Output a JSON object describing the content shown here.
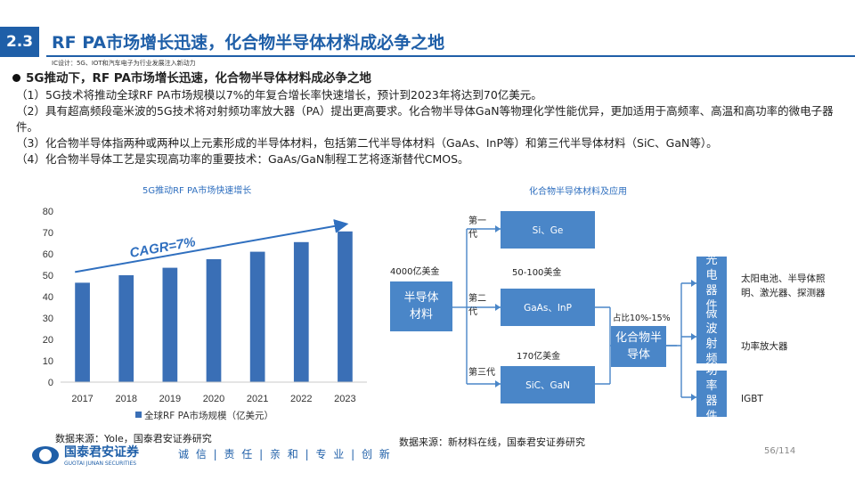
{
  "header": {
    "section_number": "2.3",
    "title": "RF PA市场增长迅速，化合物半导体材料成必争之地",
    "subtitle": "IC设计：5G、IOT和汽车电子为行业发展注入新动力"
  },
  "content": {
    "bullet": "5G推动下，RF PA市场增长迅速，化合物半导体材料成必争之地",
    "paragraphs": [
      "（1）5G技术将推动全球RF PA市场规模以7%的年复合增长率快速增长，预计到2023年将达到70亿美元。",
      "（2）具有超高频段毫米波的5G技术将对射频功率放大器（PA）提出更高要求。化合物半导体GaN等物理化学性能优异，更加适用于高频率、高温和高功率的微电子器件。",
      "（3）化合物半导体指两种或两种以上元素形成的半导体材料，包括第二代半导体材料（GaAs、InP等）和第三代半导体材料（SiC、GaN等）。",
      "（4）化合物半导体工艺是实现高功率的重要技术：GaAs/GaN制程工艺将逐渐替代CMOS。"
    ]
  },
  "chart_data": {
    "type": "bar",
    "title": "5G推动RF PA市场快速增长",
    "categories": [
      "2017",
      "2018",
      "2019",
      "2020",
      "2021",
      "2022",
      "2023"
    ],
    "series": [
      {
        "name": "全球RF PA市场规模（亿美元）",
        "values": [
          46.5,
          50,
          53.5,
          57.5,
          61,
          65.5,
          70.5
        ]
      }
    ],
    "ylim": [
      0,
      80
    ],
    "yticks": [
      0,
      10,
      20,
      30,
      40,
      50,
      60,
      70,
      80
    ],
    "annotation": "CAGR=7%",
    "grid": false,
    "legend": "bottom",
    "color": "#3a6fb6"
  },
  "diagram": {
    "title": "化合物半导体材料及应用",
    "semiconductor": {
      "label": "半导体材料",
      "value": "4000亿美金"
    },
    "generations": [
      {
        "gen": "第一代",
        "materials": "Si、Ge",
        "value": ""
      },
      {
        "gen": "第二代",
        "materials": "GaAs、InP",
        "value": "50-100美金"
      },
      {
        "gen": "第三代",
        "materials": "SiC、GaN",
        "value": "170亿美金"
      }
    ],
    "compound": {
      "label": "化合物半导体",
      "share": "占比10%-15%"
    },
    "applications": [
      {
        "device": "光电器件",
        "uses": "太阳电池、半导体照明、激光器、探测器"
      },
      {
        "device": "微波射频",
        "uses": "功率放大器"
      },
      {
        "device": "功率器件",
        "uses": "IGBT"
      }
    ],
    "colors": {
      "box": "#4a86c8",
      "line": "#4a86c8"
    }
  },
  "sources": {
    "chart": "数据来源：Yole，国泰君安证券研究",
    "diagram": "数据来源：新材料在线，国泰君安证券研究"
  },
  "footer": {
    "logo_cn": "国泰君安证券",
    "logo_en": "GUOTAI JUNAN SECURITIES",
    "slogan": "诚 信 | 责 任 | 亲 和 | 专 业 | 创 新",
    "page": "56/114"
  }
}
